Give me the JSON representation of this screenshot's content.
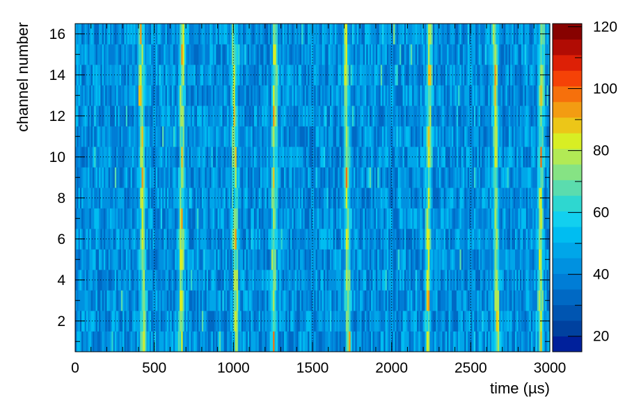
{
  "chart_data": {
    "type": "heatmap",
    "title": "",
    "xlabel": "time (µs)",
    "ylabel": "channel number",
    "xlim": [
      0,
      3000
    ],
    "ylim": [
      0.5,
      16.5
    ],
    "x_ticks": [
      "0",
      "500",
      "1000",
      "1500",
      "2000",
      "2500",
      "3000"
    ],
    "y_ticks": [
      "2",
      "4",
      "6",
      "8",
      "10",
      "12",
      "14",
      "16"
    ],
    "y_tick_values": [
      2,
      4,
      6,
      8,
      10,
      12,
      14,
      16
    ],
    "colorbar": {
      "range": [
        15,
        121
      ],
      "ticks": [
        "20",
        "40",
        "60",
        "80",
        "100",
        "120"
      ],
      "tick_values": [
        20,
        40,
        60,
        80,
        100,
        120
      ],
      "colors": [
        "#00209b",
        "#00419f",
        "#0055b1",
        "#0069c4",
        "#007dd6",
        "#0091e0",
        "#00a6e9",
        "#00bdf1",
        "#12d0ef",
        "#2ed7d0",
        "#5bdcae",
        "#86e384",
        "#b2ea55",
        "#d8ee24",
        "#ecc618",
        "#f39c12",
        "#f6700c",
        "#f54207",
        "#dd2006",
        "#b10c04",
        "#870200"
      ]
    },
    "channels": 16,
    "time_bins": 300,
    "baseline_level": 42,
    "pulse_times_us": [
      415,
      680,
      1000,
      1265,
      1710,
      2240,
      2650,
      2950
    ],
    "pulse_peak_level": 100,
    "grid": true
  }
}
